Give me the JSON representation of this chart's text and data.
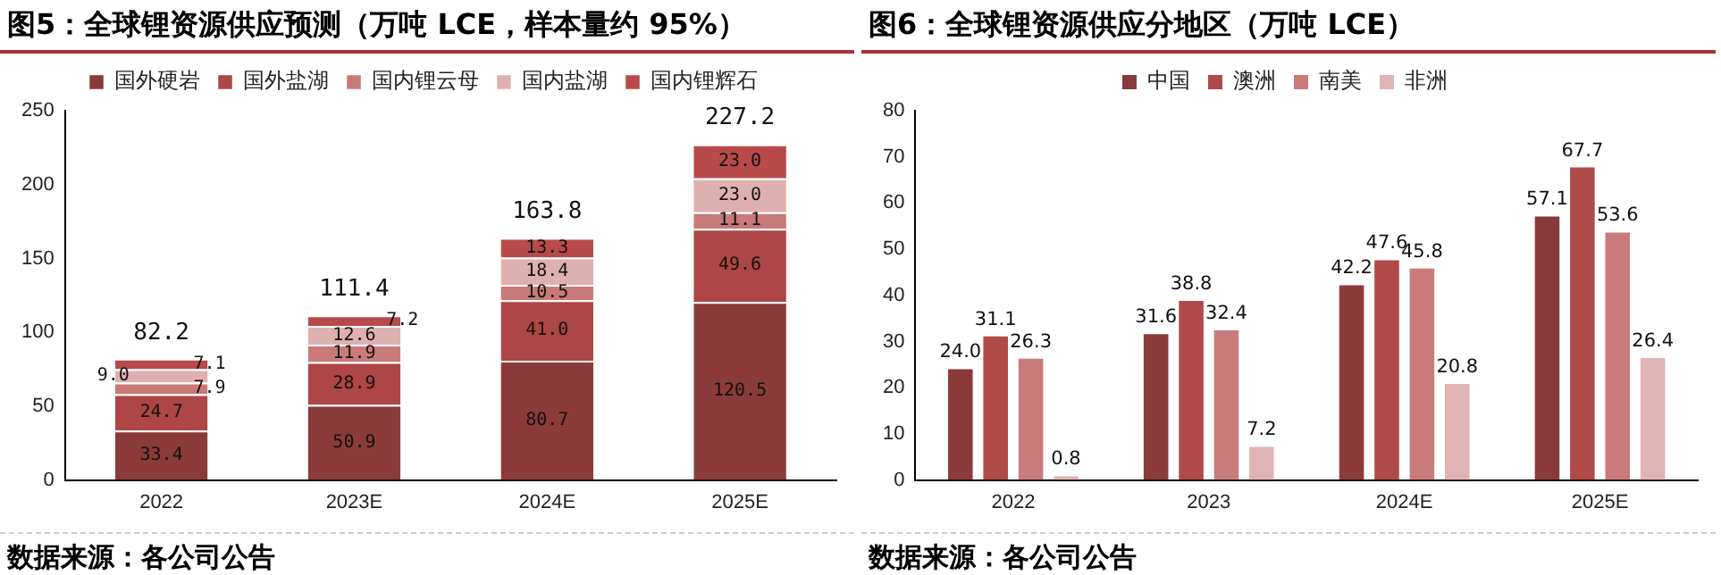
{
  "chart_data": [
    {
      "type": "bar",
      "title": "图5：全球锂资源供应预测（万吨 LCE，样本量约 95%）",
      "categories": [
        "2022",
        "2023E",
        "2024E",
        "2025E"
      ],
      "stacked": true,
      "legend": "top",
      "grid": false,
      "series": [
        {
          "name": "国外硬岩",
          "color": "#8b3a3a",
          "values": [
            33.4,
            50.9,
            80.7,
            120.5
          ],
          "value_labels": [
            "33.4",
            "50.9",
            "80.7",
            "120.5"
          ]
        },
        {
          "name": "国外盐湖",
          "color": "#ad4644",
          "values": [
            24.7,
            28.9,
            41.0,
            49.6
          ],
          "value_labels": [
            "24.7",
            "28.9",
            "41.0",
            "49.6"
          ]
        },
        {
          "name": "国内锂云母",
          "color": "#c97a78",
          "values": [
            7.9,
            11.9,
            10.5,
            11.1
          ],
          "value_labels": [
            "7.9",
            "11.9",
            "10.5",
            "11.1"
          ]
        },
        {
          "name": "国内盐湖",
          "color": "#dfb0b0",
          "values": [
            9.0,
            12.6,
            18.4,
            23.0
          ],
          "value_labels": [
            "9.0",
            "12.6",
            "18.4",
            "23.0"
          ]
        },
        {
          "name": "国内锂辉石",
          "color": "#b94a4a",
          "values": [
            7.1,
            7.2,
            13.3,
            23.0
          ],
          "value_labels": [
            "7.1",
            "7.2",
            "13.3",
            "23.0"
          ]
        }
      ],
      "totals": [
        "82.2",
        "111.4",
        "163.8",
        "227.2"
      ],
      "ylim": [
        0,
        250
      ],
      "yticks": [
        0,
        50,
        100,
        150,
        200,
        250
      ],
      "annotations": [
        "数据来源：各公司公告"
      ]
    },
    {
      "type": "bar",
      "title": "图6：全球锂资源供应分地区（万吨 LCE）",
      "categories": [
        "2022",
        "2023",
        "2024E",
        "2025E"
      ],
      "legend": "top",
      "grid": false,
      "series": [
        {
          "name": "中国",
          "color": "#8b3a3a",
          "values": [
            24.0,
            31.6,
            42.2,
            57.1
          ],
          "value_labels": [
            "24.0",
            "31.6",
            "42.2",
            "57.1"
          ]
        },
        {
          "name": "澳洲",
          "color": "#b04a48",
          "values": [
            31.1,
            38.8,
            47.6,
            67.7
          ],
          "value_labels": [
            "31.1",
            "38.8",
            "47.6",
            "67.7"
          ]
        },
        {
          "name": "南美",
          "color": "#c97b7b",
          "values": [
            26.3,
            32.4,
            45.8,
            53.6
          ],
          "value_labels": [
            "26.3",
            "32.4",
            "45.8",
            "53.6"
          ]
        },
        {
          "name": "非洲",
          "color": "#e0b4b4",
          "values": [
            0.8,
            7.2,
            20.8,
            26.4
          ],
          "value_labels": [
            "0.8",
            "7.2",
            "20.8",
            "26.4"
          ]
        }
      ],
      "ylim": [
        0,
        80
      ],
      "yticks": [
        0,
        10,
        20,
        30,
        40,
        50,
        60,
        70,
        80
      ],
      "annotations": [
        "数据来源：各公司公告"
      ]
    }
  ]
}
